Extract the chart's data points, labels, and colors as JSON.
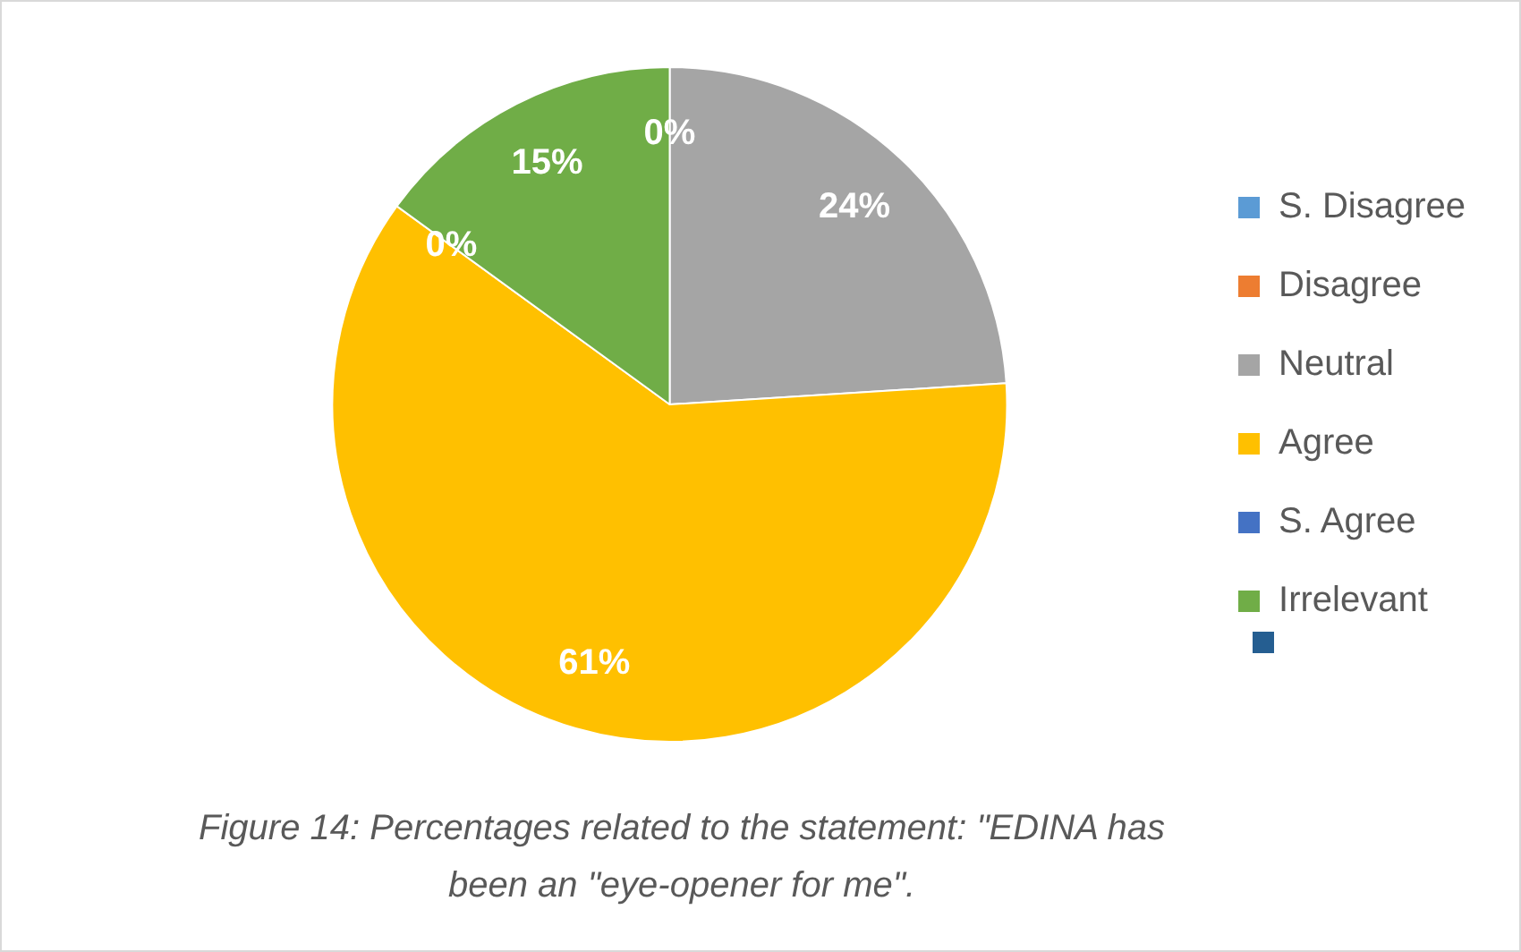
{
  "chart_data": {
    "type": "pie",
    "categories": [
      "S. Disagree",
      "Disagree",
      "Neutral",
      "Agree",
      "S. Agree",
      "Irrelevant"
    ],
    "values": [
      0,
      0,
      24,
      61,
      0,
      15
    ],
    "colors": [
      "#5b9bd5",
      "#ed7d31",
      "#a5a5a5",
      "#ffc000",
      "#4472c4",
      "#70ad47"
    ],
    "value_labels": [
      "0%",
      null,
      "24%",
      "61%",
      "0%",
      "15%"
    ],
    "legend": "right",
    "annotations": [
      "Figure 14: Percentages related to the statement: \"EDINA has been an \"eye-opener for me\"."
    ]
  }
}
